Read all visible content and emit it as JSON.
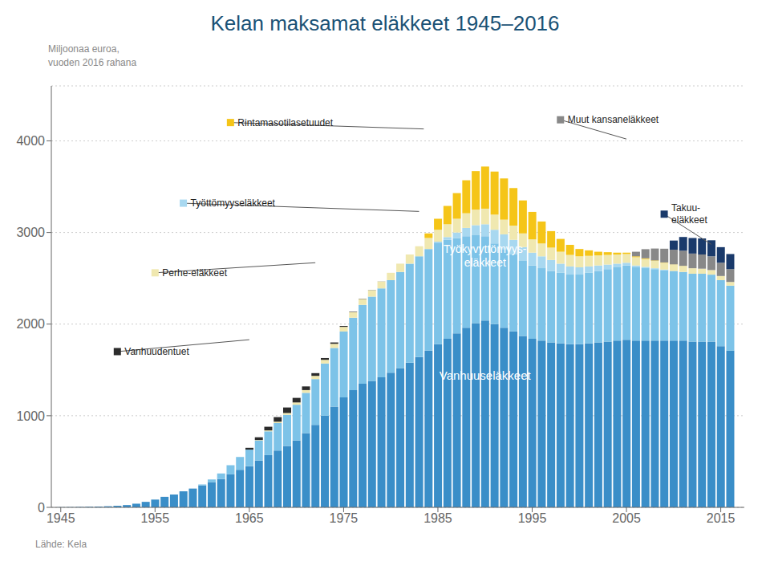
{
  "chart_data": {
    "type": "bar",
    "stacked": true,
    "grid": true,
    "title": "Kelan maksamat eläkkeet 1945–2016",
    "ylabel": "Miljoonaa euroa,\nvuoden 2016 rahana",
    "source": "Lähde: Kela",
    "x": [
      1945,
      1946,
      1947,
      1948,
      1949,
      1950,
      1951,
      1952,
      1953,
      1954,
      1955,
      1956,
      1957,
      1958,
      1959,
      1960,
      1961,
      1962,
      1963,
      1964,
      1965,
      1966,
      1967,
      1968,
      1969,
      1970,
      1971,
      1972,
      1973,
      1974,
      1975,
      1976,
      1977,
      1978,
      1979,
      1980,
      1981,
      1982,
      1983,
      1984,
      1985,
      1986,
      1987,
      1988,
      1989,
      1990,
      1991,
      1992,
      1993,
      1994,
      1995,
      1996,
      1997,
      1998,
      1999,
      2000,
      2001,
      2002,
      2003,
      2004,
      2005,
      2006,
      2007,
      2008,
      2009,
      2010,
      2011,
      2012,
      2013,
      2014,
      2015,
      2016
    ],
    "xlim": [
      1944,
      2017.5
    ],
    "xticks": [
      1945,
      1955,
      1965,
      1975,
      1985,
      1995,
      2005,
      2015
    ],
    "ylim": [
      0,
      4600
    ],
    "yticks": [
      0,
      1000,
      2000,
      3000,
      4000
    ],
    "series": [
      {
        "name": "Vanhuuseläkkeet",
        "color": "#3A8EC8",
        "values": [
          2,
          3,
          5,
          7,
          9,
          12,
          17,
          25,
          40,
          60,
          85,
          115,
          140,
          175,
          205,
          240,
          275,
          310,
          360,
          410,
          450,
          510,
          570,
          620,
          670,
          730,
          810,
          900,
          1000,
          1100,
          1200,
          1280,
          1350,
          1380,
          1420,
          1470,
          1520,
          1580,
          1640,
          1710,
          1780,
          1840,
          1900,
          1960,
          2010,
          2040,
          2000,
          1960,
          1920,
          1870,
          1840,
          1820,
          1800,
          1790,
          1780,
          1780,
          1790,
          1800,
          1810,
          1820,
          1830,
          1820,
          1820,
          1820,
          1820,
          1820,
          1820,
          1810,
          1810,
          1810,
          1760,
          1710
        ]
      },
      {
        "name": "Työkyvyttömyys-\neläkkeet",
        "color": "#7DC3E8",
        "values": [
          0,
          0,
          0,
          0,
          0,
          0,
          0,
          0,
          0,
          0,
          0,
          0,
          0,
          0,
          0,
          10,
          30,
          60,
          100,
          140,
          180,
          220,
          260,
          300,
          340,
          390,
          440,
          500,
          570,
          640,
          720,
          790,
          860,
          920,
          970,
          1010,
          1050,
          1080,
          1100,
          1110,
          1110,
          1080,
          1040,
          1000,
          960,
          920,
          880,
          860,
          840,
          820,
          800,
          790,
          780,
          770,
          760,
          760,
          770,
          780,
          790,
          800,
          810,
          800,
          790,
          780,
          770,
          760,
          750,
          740,
          740,
          730,
          720,
          710
        ]
      },
      {
        "name": "Työttömyyseläkkeet",
        "color": "#A8D8F0",
        "values": [
          0,
          0,
          0,
          0,
          0,
          0,
          0,
          0,
          0,
          0,
          0,
          0,
          0,
          0,
          0,
          0,
          0,
          0,
          0,
          0,
          0,
          0,
          0,
          0,
          0,
          0,
          0,
          0,
          0,
          0,
          0,
          0,
          0,
          0,
          0,
          0,
          0,
          0,
          0,
          0,
          10,
          30,
          60,
          90,
          110,
          130,
          150,
          160,
          160,
          150,
          140,
          130,
          120,
          100,
          90,
          80,
          70,
          60,
          50,
          40,
          30,
          20,
          15,
          10,
          5,
          0,
          0,
          0,
          0,
          0,
          0,
          0
        ]
      },
      {
        "name": "Perhe-eläkkeet",
        "color": "#F0E8B0",
        "values": [
          0,
          0,
          0,
          0,
          0,
          0,
          0,
          0,
          0,
          0,
          0,
          0,
          0,
          0,
          0,
          0,
          0,
          0,
          0,
          0,
          0,
          5,
          10,
          15,
          20,
          25,
          30,
          35,
          40,
          45,
          50,
          60,
          65,
          70,
          75,
          80,
          90,
          100,
          110,
          120,
          130,
          140,
          150,
          160,
          170,
          170,
          165,
          160,
          155,
          150,
          145,
          140,
          135,
          130,
          125,
          120,
          115,
          110,
          105,
          100,
          95,
          90,
          85,
          80,
          75,
          70,
          65,
          60,
          55,
          50,
          45,
          40
        ]
      },
      {
        "name": "Rintamasotilasetuudet",
        "color": "#F5C518",
        "values": [
          0,
          0,
          0,
          0,
          0,
          0,
          0,
          0,
          0,
          0,
          0,
          0,
          0,
          0,
          0,
          0,
          0,
          0,
          0,
          0,
          0,
          0,
          0,
          0,
          0,
          0,
          0,
          0,
          0,
          0,
          0,
          0,
          0,
          0,
          0,
          0,
          0,
          0,
          0,
          50,
          120,
          200,
          280,
          360,
          420,
          460,
          470,
          450,
          410,
          360,
          300,
          240,
          180,
          140,
          110,
          80,
          60,
          40,
          30,
          20,
          15,
          10,
          8,
          5,
          3,
          2,
          1,
          0,
          0,
          0,
          0,
          0
        ]
      },
      {
        "name": "Vanhuudentuet",
        "color": "#2C2C2C",
        "values": [
          0,
          0,
          0,
          0,
          0,
          0,
          0,
          0,
          0,
          0,
          0,
          0,
          0,
          0,
          0,
          0,
          0,
          0,
          0,
          0,
          20,
          30,
          40,
          50,
          60,
          50,
          40,
          30,
          20,
          15,
          10,
          5,
          3,
          2,
          1,
          0,
          0,
          0,
          0,
          0,
          0,
          0,
          0,
          0,
          0,
          0,
          0,
          0,
          0,
          0,
          0,
          0,
          0,
          0,
          0,
          0,
          0,
          0,
          0,
          0,
          0,
          0,
          0,
          0,
          0,
          0,
          0,
          0,
          0,
          0,
          0,
          0
        ]
      },
      {
        "name": "Muut kansaneläkkeet",
        "color": "#888888",
        "values": [
          0,
          0,
          0,
          0,
          0,
          0,
          0,
          0,
          0,
          0,
          0,
          0,
          0,
          0,
          0,
          0,
          0,
          0,
          0,
          0,
          0,
          0,
          0,
          0,
          0,
          0,
          0,
          0,
          0,
          0,
          0,
          0,
          0,
          0,
          0,
          0,
          0,
          0,
          0,
          0,
          0,
          0,
          0,
          0,
          0,
          0,
          0,
          0,
          0,
          0,
          0,
          0,
          0,
          0,
          0,
          0,
          0,
          0,
          0,
          0,
          0,
          50,
          100,
          130,
          150,
          160,
          165,
          160,
          155,
          150,
          145,
          140
        ]
      },
      {
        "name": "Takuu-\neläkkeet",
        "color": "#1A3A6B",
        "values": [
          0,
          0,
          0,
          0,
          0,
          0,
          0,
          0,
          0,
          0,
          0,
          0,
          0,
          0,
          0,
          0,
          0,
          0,
          0,
          0,
          0,
          0,
          0,
          0,
          0,
          0,
          0,
          0,
          0,
          0,
          0,
          0,
          0,
          0,
          0,
          0,
          0,
          0,
          0,
          0,
          0,
          0,
          0,
          0,
          0,
          0,
          0,
          0,
          0,
          0,
          0,
          0,
          0,
          0,
          0,
          0,
          0,
          0,
          0,
          0,
          0,
          0,
          0,
          0,
          0,
          100,
          150,
          170,
          175,
          175,
          170,
          165
        ]
      }
    ],
    "annotations": [
      {
        "series": 0,
        "x": 1990,
        "y": 1450
      },
      {
        "series": 1,
        "x": 1990,
        "y": 2750
      },
      {
        "series": 4,
        "x": 1983.5,
        "y": 4130,
        "text_x": 1963,
        "text_y": 4200
      },
      {
        "series": 2,
        "x": 1983,
        "y": 3230,
        "text_x": 1958,
        "text_y": 3320
      },
      {
        "series": 3,
        "x": 1972,
        "y": 2670,
        "text_x": 1955,
        "text_y": 2560
      },
      {
        "series": 5,
        "x": 1965,
        "y": 1830,
        "text_x": 1951,
        "text_y": 1700
      },
      {
        "series": 6,
        "x": 2005,
        "y": 4020,
        "text_x": 1998,
        "text_y": 4230
      },
      {
        "series": 7,
        "x": 2014,
        "y": 2870,
        "text_x": 2009,
        "text_y": 3200
      }
    ]
  }
}
